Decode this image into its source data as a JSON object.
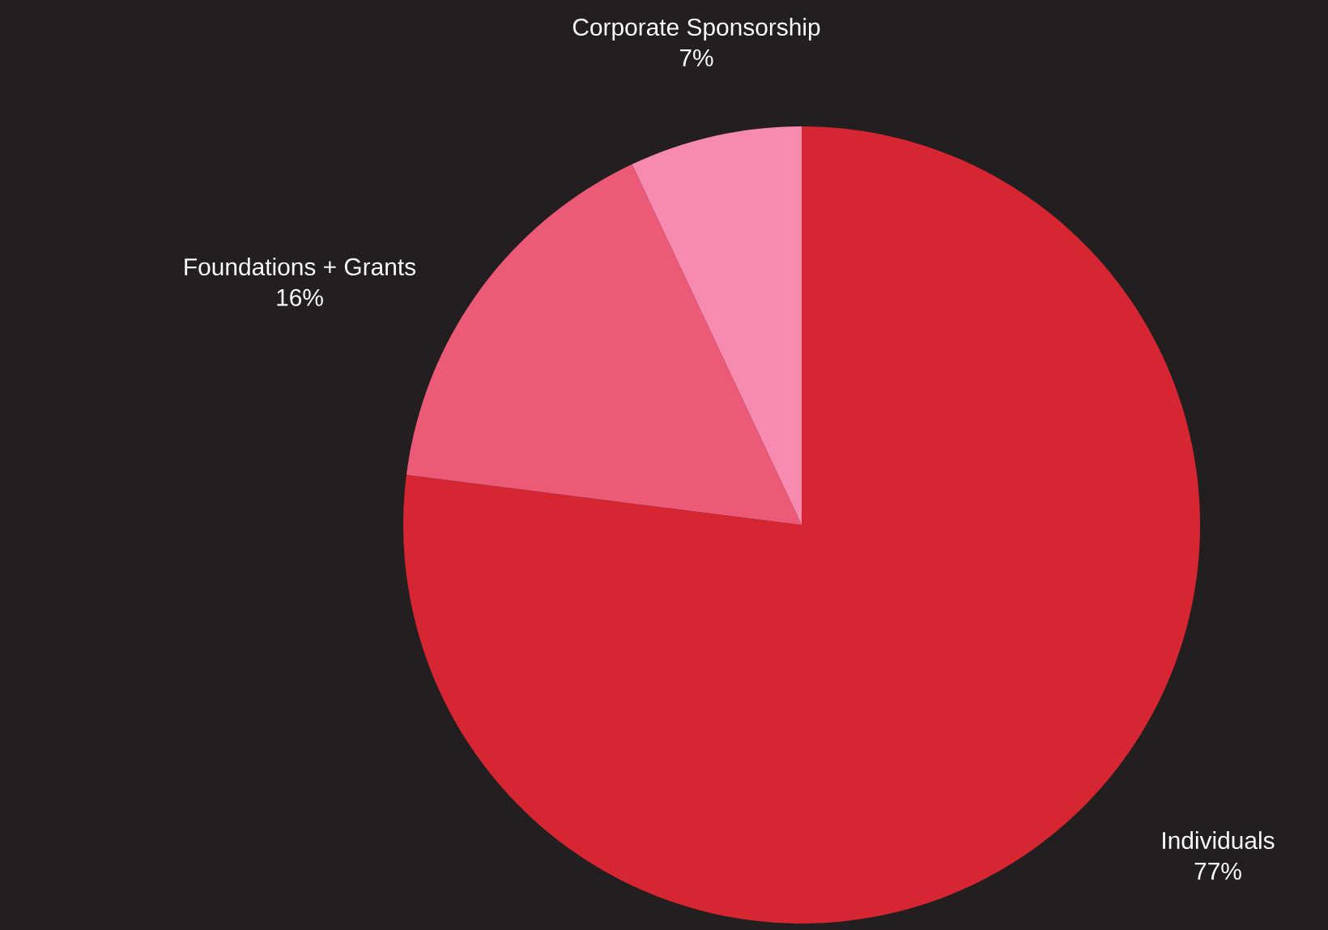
{
  "chart_data": {
    "type": "pie",
    "categories": [
      "Individuals",
      "Foundations + Grants",
      "Corporate Sponsorship"
    ],
    "values": [
      77,
      16,
      7
    ],
    "colors": [
      "#d62631",
      "#ec5a78",
      "#f68aaf"
    ],
    "value_labels": [
      "77%",
      "16%",
      "7%"
    ]
  }
}
